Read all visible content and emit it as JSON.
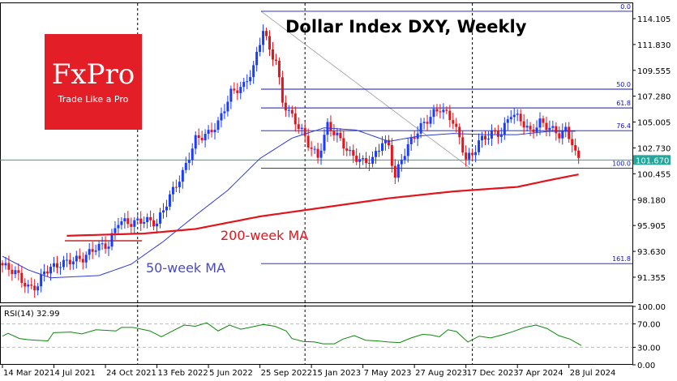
{
  "chart_data": {
    "type": "candlestick",
    "title": "Dollar Index DXY, Weekly",
    "y_ticks": [
      "114.105",
      "111.830",
      "109.555",
      "107.280",
      "105.005",
      "102.730",
      "100.455",
      "98.180",
      "95.905",
      "93.630",
      "91.355"
    ],
    "ylim": [
      90.2,
      114.9
    ],
    "x_ticks": [
      "14 Mar 2021",
      "4 Jul 2021",
      "24 Oct 2021",
      "13 Feb 2022",
      "5 Jun 2022",
      "25 Sep 2022",
      "15 Jan 2023",
      "7 May 2023",
      "27 Aug 2023",
      "17 Dec 2023",
      "7 Apr 2024",
      "28 Jul 2024"
    ],
    "x_tick_weeks": [
      0,
      16,
      32,
      48,
      64,
      80,
      96,
      112,
      128,
      144,
      160,
      176
    ],
    "year_separator_weeks": [
      42,
      94,
      146
    ],
    "current_price": 101.67,
    "current_price_label": "101.670",
    "close_keypoints": [
      [
        0,
        92.4
      ],
      [
        4,
        91.8
      ],
      [
        8,
        90.4
      ],
      [
        11,
        90.6
      ],
      [
        13,
        91.9
      ],
      [
        17,
        92.4
      ],
      [
        21,
        92.8
      ],
      [
        25,
        93.0
      ],
      [
        29,
        94.0
      ],
      [
        33,
        94.2
      ],
      [
        36,
        96.3
      ],
      [
        40,
        96.1
      ],
      [
        44,
        96.4
      ],
      [
        48,
        96.1
      ],
      [
        52,
        98.5
      ],
      [
        56,
        100.5
      ],
      [
        60,
        103.5
      ],
      [
        64,
        104.0
      ],
      [
        67,
        104.9
      ],
      [
        71,
        107.6
      ],
      [
        75,
        108.2
      ],
      [
        78,
        109.8
      ],
      [
        81,
        113.2
      ],
      [
        83,
        111.3
      ],
      [
        85,
        110.4
      ],
      [
        87,
        106.8
      ],
      [
        89,
        105.9
      ],
      [
        93,
        104.2
      ],
      [
        95,
        103.1
      ],
      [
        98,
        101.9
      ],
      [
        101,
        104.7
      ],
      [
        104,
        103.8
      ],
      [
        108,
        102.2
      ],
      [
        112,
        101.5
      ],
      [
        115,
        101.7
      ],
      [
        118,
        103.3
      ],
      [
        120,
        102.9
      ],
      [
        122,
        100.1
      ],
      [
        124,
        101.8
      ],
      [
        127,
        103.4
      ],
      [
        130,
        104.6
      ],
      [
        134,
        105.8
      ],
      [
        136,
        106.2
      ],
      [
        138,
        105.7
      ],
      [
        140,
        105.1
      ],
      [
        142,
        103.5
      ],
      [
        144,
        101.8
      ],
      [
        146,
        102.1
      ],
      [
        148,
        103.3
      ],
      [
        152,
        104.0
      ],
      [
        155,
        104.0
      ],
      [
        158,
        105.8
      ],
      [
        161,
        105.2
      ],
      [
        164,
        104.1
      ],
      [
        167,
        105.0
      ],
      [
        170,
        104.5
      ],
      [
        173,
        103.9
      ],
      [
        175,
        104.3
      ],
      [
        177,
        103.2
      ],
      [
        178,
        102.2
      ],
      [
        179,
        101.7
      ]
    ],
    "series": [
      {
        "name": "50-week MA",
        "color": "#2f3bd6",
        "keypoints": [
          [
            0,
            93.2
          ],
          [
            8,
            92.0
          ],
          [
            15,
            91.3
          ],
          [
            30,
            91.5
          ],
          [
            40,
            92.5
          ],
          [
            50,
            94.5
          ],
          [
            60,
            96.8
          ],
          [
            70,
            99.0
          ],
          [
            80,
            101.8
          ],
          [
            90,
            103.6
          ],
          [
            100,
            104.5
          ],
          [
            110,
            104.3
          ],
          [
            120,
            103.3
          ],
          [
            130,
            103.8
          ],
          [
            140,
            104.0
          ],
          [
            150,
            103.9
          ],
          [
            160,
            103.9
          ],
          [
            170,
            104.2
          ],
          [
            178,
            104.2
          ]
        ]
      },
      {
        "name": "200-week MA",
        "color": "#e3141b",
        "keypoints": [
          [
            20,
            95.0
          ],
          [
            44,
            95.2
          ],
          [
            60,
            95.6
          ],
          [
            80,
            96.7
          ],
          [
            100,
            97.5
          ],
          [
            120,
            98.3
          ],
          [
            140,
            98.9
          ],
          [
            160,
            99.3
          ],
          [
            170,
            99.9
          ],
          [
            179,
            100.4
          ]
        ]
      }
    ],
    "fib_levels": [
      {
        "label": "0.0",
        "value": 114.75
      },
      {
        "label": "50.0",
        "value": 107.9
      },
      {
        "label": "61.8",
        "value": 106.25
      },
      {
        "label": "76.4",
        "value": 104.25
      },
      {
        "label": "100.0",
        "value": 100.95
      },
      {
        "label": "161.8",
        "value": 92.55
      }
    ],
    "annotations": [
      "200-week MA",
      "50-week MA"
    ],
    "rsi": {
      "label": "RSI(14) 32.99",
      "ticks": [
        "100.00",
        "70.00",
        "30.00",
        "0.00"
      ],
      "keypoints": [
        [
          0,
          49
        ],
        [
          2,
          54
        ],
        [
          6,
          45
        ],
        [
          9,
          43
        ],
        [
          12,
          42
        ],
        [
          16,
          41
        ],
        [
          18,
          55
        ],
        [
          24,
          56
        ],
        [
          28,
          53
        ],
        [
          33,
          60
        ],
        [
          40,
          58
        ],
        [
          42,
          64
        ],
        [
          46,
          64
        ],
        [
          52,
          58
        ],
        [
          56,
          48
        ],
        [
          60,
          58
        ],
        [
          64,
          68
        ],
        [
          68,
          66
        ],
        [
          72,
          72
        ],
        [
          76,
          58
        ],
        [
          80,
          68
        ],
        [
          84,
          61
        ],
        [
          88,
          65
        ],
        [
          92,
          69
        ],
        [
          96,
          66
        ],
        [
          100,
          58
        ],
        [
          102,
          45
        ],
        [
          106,
          40
        ],
        [
          110,
          39
        ],
        [
          113,
          36
        ],
        [
          117,
          36
        ],
        [
          120,
          44
        ],
        [
          124,
          50
        ],
        [
          128,
          42
        ],
        [
          132,
          41
        ],
        [
          136,
          39
        ],
        [
          140,
          38
        ],
        [
          144,
          46
        ],
        [
          148,
          52
        ],
        [
          151,
          51
        ],
        [
          154,
          48
        ],
        [
          157,
          60
        ],
        [
          160,
          57
        ],
        [
          164,
          39
        ],
        [
          168,
          49
        ],
        [
          172,
          46
        ],
        [
          176,
          51
        ],
        [
          180,
          57
        ],
        [
          184,
          64
        ],
        [
          188,
          68
        ],
        [
          192,
          62
        ],
        [
          196,
          50
        ],
        [
          200,
          44
        ],
        [
          204,
          33
        ]
      ]
    },
    "colors": {
      "up": "#1a3cff",
      "down": "#e3141b",
      "current": "#26a69a"
    }
  },
  "logo": {
    "brand": "FxPro",
    "tagline": "Trade Like a Pro"
  }
}
